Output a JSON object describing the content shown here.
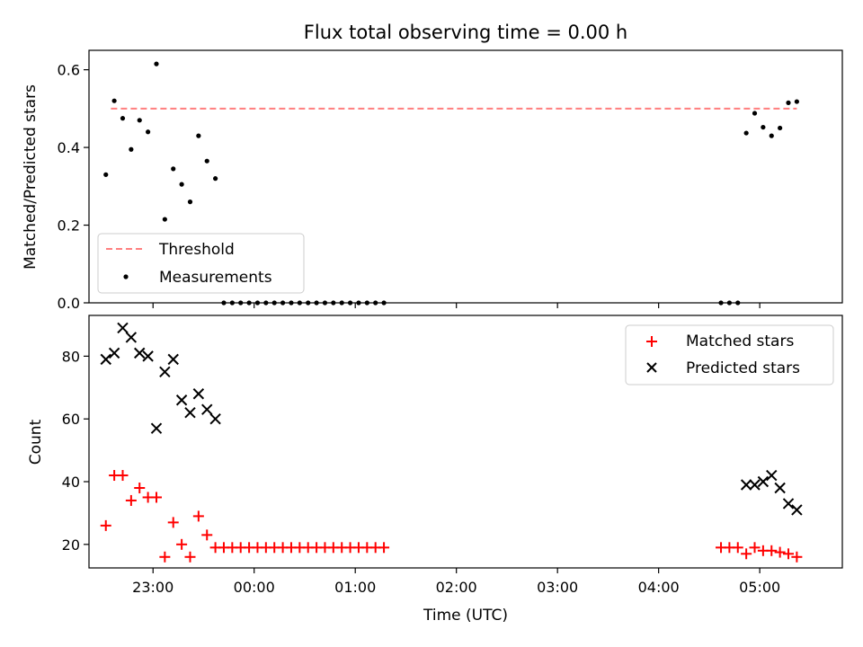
{
  "chart_data": [
    {
      "type": "scatter",
      "title": "Flux total observing time = 0.00 h",
      "ylabel": "Matched/Predicted stars",
      "xlabel": "",
      "xlim": [
        "22:22",
        "05:49"
      ],
      "ylim": [
        0,
        0.65
      ],
      "yticks": [
        0.0,
        0.2,
        0.4,
        0.6
      ],
      "ytick_labels": [
        "0.0",
        "0.2",
        "0.4",
        "0.6"
      ],
      "xticks": [
        "23:00",
        "00:00",
        "01:00",
        "02:00",
        "03:00",
        "04:00",
        "05:00"
      ],
      "xtick_labels_shown": false,
      "legend": {
        "location": "lower-left",
        "entries": [
          "Threshold",
          "Measurements"
        ]
      },
      "colors": {
        "threshold": "#ff7f7f",
        "measurements": "#000000"
      },
      "series": [
        {
          "name": "Threshold",
          "kind": "dashed-line",
          "x": [
            "22:35",
            "05:22"
          ],
          "y": [
            0.5,
            0.5
          ]
        },
        {
          "name": "Measurements",
          "kind": "points",
          "x": [
            "22:32",
            "22:37",
            "22:42",
            "22:47",
            "22:52",
            "22:57",
            "23:02",
            "23:07",
            "23:12",
            "23:17",
            "23:22",
            "23:27",
            "23:32",
            "23:37",
            "23:42",
            "23:47",
            "23:52",
            "23:57",
            "00:02",
            "00:07",
            "00:12",
            "00:17",
            "00:22",
            "00:27",
            "00:32",
            "00:37",
            "00:42",
            "00:47",
            "00:52",
            "00:57",
            "01:02",
            "01:07",
            "01:12",
            "01:17",
            "04:37",
            "04:42",
            "04:47",
            "04:52",
            "04:57",
            "05:02",
            "05:07",
            "05:12",
            "05:17",
            "05:22"
          ],
          "y": [
            0.33,
            0.52,
            0.475,
            0.395,
            0.47,
            0.44,
            0.615,
            0.215,
            0.345,
            0.305,
            0.26,
            0.43,
            0.365,
            0.32,
            0,
            0,
            0,
            0,
            0,
            0,
            0,
            0,
            0,
            0,
            0,
            0,
            0,
            0,
            0,
            0,
            0,
            0,
            0,
            0,
            0,
            0,
            0,
            0.437,
            0.488,
            0.452,
            0.43,
            0.45,
            0.515,
            0.518
          ]
        }
      ]
    },
    {
      "type": "scatter",
      "title": "",
      "ylabel": "Count",
      "xlabel": "Time (UTC)",
      "xlim": [
        "22:22",
        "05:49"
      ],
      "ylim": [
        12.5,
        93
      ],
      "yticks": [
        20,
        40,
        60,
        80
      ],
      "ytick_labels": [
        "20",
        "40",
        "60",
        "80"
      ],
      "xticks": [
        "23:00",
        "00:00",
        "01:00",
        "02:00",
        "03:00",
        "04:00",
        "05:00"
      ],
      "xtick_labels": [
        "23:00",
        "00:00",
        "01:00",
        "02:00",
        "03:00",
        "04:00",
        "05:00"
      ],
      "legend": {
        "location": "top-right",
        "entries": [
          "Matched stars",
          "Predicted stars"
        ]
      },
      "colors": {
        "matched": "#ff0000",
        "predicted": "#000000"
      },
      "series": [
        {
          "name": "Matched stars",
          "marker": "plus",
          "x": [
            "22:32",
            "22:37",
            "22:42",
            "22:47",
            "22:52",
            "22:57",
            "23:02",
            "23:07",
            "23:12",
            "23:17",
            "23:22",
            "23:27",
            "23:32",
            "23:37",
            "23:42",
            "23:47",
            "23:52",
            "23:57",
            "00:02",
            "00:07",
            "00:12",
            "00:17",
            "00:22",
            "00:27",
            "00:32",
            "00:37",
            "00:42",
            "00:47",
            "00:52",
            "00:57",
            "01:02",
            "01:07",
            "01:12",
            "01:17",
            "04:37",
            "04:42",
            "04:47",
            "04:52",
            "04:57",
            "05:02",
            "05:07",
            "05:12",
            "05:17",
            "05:22"
          ],
          "y": [
            26,
            42,
            42,
            34,
            38,
            35,
            35,
            16,
            27,
            20,
            16,
            29,
            23,
            19,
            19,
            19,
            19,
            19,
            19,
            19,
            19,
            19,
            19,
            19,
            19,
            19,
            19,
            19,
            19,
            19,
            19,
            19,
            19,
            19,
            19,
            19,
            19,
            17,
            19,
            18,
            18,
            17.5,
            17,
            16
          ]
        },
        {
          "name": "Predicted stars",
          "marker": "cross",
          "x": [
            "22:32",
            "22:37",
            "22:42",
            "22:47",
            "22:52",
            "22:57",
            "23:02",
            "23:07",
            "23:12",
            "23:17",
            "23:22",
            "23:27",
            "23:32",
            "23:37",
            "04:52",
            "04:57",
            "05:02",
            "05:07",
            "05:12",
            "05:17",
            "05:22"
          ],
          "y": [
            79,
            81,
            89,
            86,
            81,
            80,
            57,
            75,
            79,
            66,
            62,
            68,
            63,
            60,
            39,
            39,
            40,
            42,
            38,
            33,
            31
          ]
        }
      ]
    }
  ]
}
